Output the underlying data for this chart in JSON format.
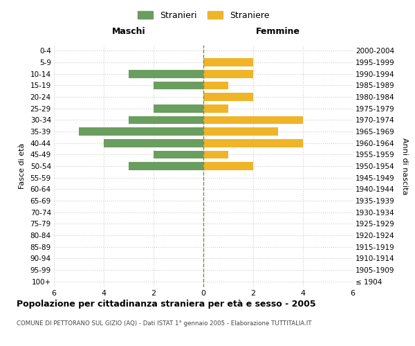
{
  "age_groups": [
    "100+",
    "95-99",
    "90-94",
    "85-89",
    "80-84",
    "75-79",
    "70-74",
    "65-69",
    "60-64",
    "55-59",
    "50-54",
    "45-49",
    "40-44",
    "35-39",
    "30-34",
    "25-29",
    "20-24",
    "15-19",
    "10-14",
    "5-9",
    "0-4"
  ],
  "birth_years": [
    "≤ 1904",
    "1905-1909",
    "1910-1914",
    "1915-1919",
    "1920-1924",
    "1925-1929",
    "1930-1934",
    "1935-1939",
    "1940-1944",
    "1945-1949",
    "1950-1954",
    "1955-1959",
    "1960-1964",
    "1965-1969",
    "1970-1974",
    "1975-1979",
    "1980-1984",
    "1985-1989",
    "1990-1994",
    "1995-1999",
    "2000-2004"
  ],
  "males": [
    0,
    0,
    0,
    0,
    0,
    0,
    0,
    0,
    0,
    0,
    3,
    2,
    4,
    5,
    3,
    2,
    0,
    2,
    3,
    0,
    0
  ],
  "females": [
    0,
    0,
    0,
    0,
    0,
    0,
    0,
    0,
    0,
    0,
    2,
    1,
    4,
    3,
    4,
    1,
    2,
    1,
    2,
    2,
    0
  ],
  "male_color": "#6a9e5f",
  "female_color": "#f0b429",
  "title": "Popolazione per cittadinanza straniera per età e sesso - 2005",
  "subtitle": "COMUNE DI PETTORANO SUL GIZIO (AQ) - Dati ISTAT 1° gennaio 2005 - Elaborazione TUTTITALIA.IT",
  "xlabel_left": "Maschi",
  "xlabel_right": "Femmine",
  "ylabel_left": "Fasce di età",
  "ylabel_right": "Anni di nascita",
  "legend_male": "Stranieri",
  "legend_female": "Straniere",
  "xlim": 6,
  "background_color": "#ffffff",
  "grid_color": "#cccccc",
  "dashed_line_color": "#888844"
}
